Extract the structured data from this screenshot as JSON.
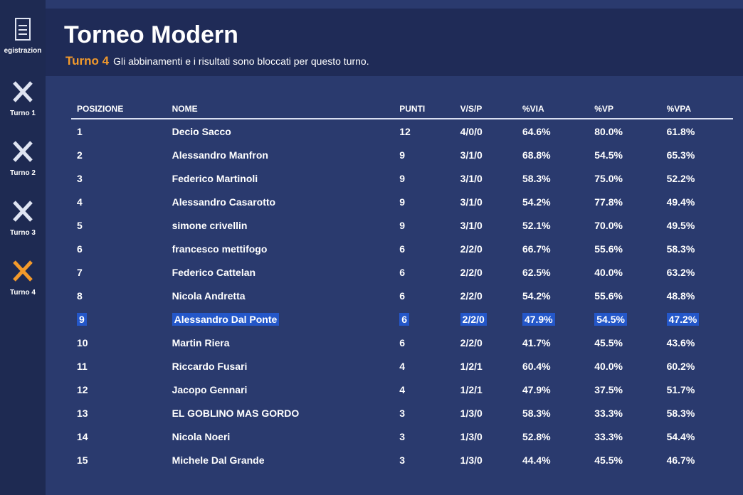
{
  "sidebar": {
    "items": [
      "egistrazion",
      "Turno 1",
      "Turno 2",
      "Turno 3",
      "Turno 4"
    ]
  },
  "header": {
    "title": "Torneo Modern",
    "round": "Turno 4",
    "notice": "Gli abbinamenti e i risultati sono bloccati per questo turno."
  },
  "table": {
    "columns": [
      "POSIZIONE",
      "NOME",
      "PUNTI",
      "V/S/P",
      "%VIA",
      "%VP",
      "%VPA"
    ],
    "rows": [
      [
        "1",
        "Decio Sacco",
        "12",
        "4/0/0",
        "64.6%",
        "80.0%",
        "61.8%"
      ],
      [
        "2",
        "Alessandro Manfron",
        "9",
        "3/1/0",
        "68.8%",
        "54.5%",
        "65.3%"
      ],
      [
        "3",
        "Federico Martinoli",
        "9",
        "3/1/0",
        "58.3%",
        "75.0%",
        "52.2%"
      ],
      [
        "4",
        "Alessandro Casarotto",
        "9",
        "3/1/0",
        "54.2%",
        "77.8%",
        "49.4%"
      ],
      [
        "5",
        "simone crivellin",
        "9",
        "3/1/0",
        "52.1%",
        "70.0%",
        "49.5%"
      ],
      [
        "6",
        "francesco mettifogo",
        "6",
        "2/2/0",
        "66.7%",
        "55.6%",
        "58.3%"
      ],
      [
        "7",
        "Federico Cattelan",
        "6",
        "2/2/0",
        "62.5%",
        "40.0%",
        "63.2%"
      ],
      [
        "8",
        "Nicola Andretta",
        "6",
        "2/2/0",
        "54.2%",
        "55.6%",
        "48.8%"
      ],
      [
        "9",
        "Alessandro Dal Ponte",
        "6",
        "2/2/0",
        "47.9%",
        "54.5%",
        "47.2%"
      ],
      [
        "10",
        "Martin Riera",
        "6",
        "2/2/0",
        "41.7%",
        "45.5%",
        "43.6%"
      ],
      [
        "11",
        "Riccardo Fusari",
        "4",
        "1/2/1",
        "60.4%",
        "40.0%",
        "60.2%"
      ],
      [
        "12",
        "Jacopo Gennari",
        "4",
        "1/2/1",
        "47.9%",
        "37.5%",
        "51.7%"
      ],
      [
        "13",
        "EL GOBLINO MAS GORDO",
        "3",
        "1/3/0",
        "58.3%",
        "33.3%",
        "58.3%"
      ],
      [
        "14",
        "Nicola Noeri",
        "3",
        "1/3/0",
        "52.8%",
        "33.3%",
        "54.4%"
      ],
      [
        "15",
        "Michele Dal Grande",
        "3",
        "1/3/0",
        "44.4%",
        "45.5%",
        "46.7%"
      ]
    ]
  }
}
